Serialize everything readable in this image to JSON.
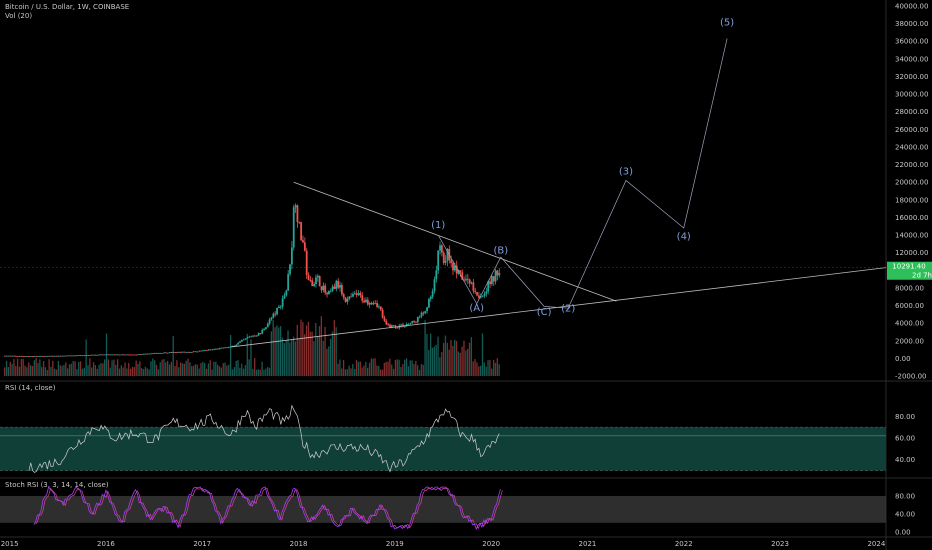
{
  "header": {
    "symbol": "Bitcoin / U.S. Dollar, 1W, COINBASE",
    "volume_label": "Vol (20)"
  },
  "rsi_panel": {
    "label": "RSI (14, close)"
  },
  "stoch_panel": {
    "label": "Stoch RSI (3, 3, 14, 14, close)"
  },
  "price_badge": {
    "price": "10291.40",
    "countdown": "2d 7h"
  },
  "colors": {
    "background": "#000000",
    "up": "#26a69a",
    "down": "#ef5350",
    "price_badge": "#2fbf5a",
    "rsi_line": "#d0d0d0",
    "rsi_band": "#0f3f36",
    "stoch_k": "#a040ff",
    "stoch_d": "#e0409c",
    "wave_label": "#7f9fd8",
    "grid_text": "#c8c8c8"
  },
  "chart_data": [
    {
      "type": "line",
      "name": "price",
      "y_ticks": [
        "40000.00",
        "38000.00",
        "36000.00",
        "34000.00",
        "32000.00",
        "30000.00",
        "28000.00",
        "26000.00",
        "24000.00",
        "22000.00",
        "20000.00",
        "18000.00",
        "16000.00",
        "14000.00",
        "12000.00",
        "10000.00",
        "8000.00",
        "6000.00",
        "4000.00",
        "2000.00",
        "0.00",
        "-2000.00"
      ],
      "ylim": [
        -2000,
        40000
      ],
      "x_ticks": [
        "2015",
        "2016",
        "2017",
        "2018",
        "2019",
        "2020",
        "2021",
        "2022",
        "2023",
        "2024"
      ],
      "xlim": [
        2014.9,
        2024.1
      ],
      "series": [
        {
          "values_x": [
            2014.95,
            2015.2,
            2015.5,
            2015.8,
            2016.0,
            2016.3,
            2016.6,
            2016.9,
            2017.1,
            2017.3,
            2017.5,
            2017.6,
            2017.7,
            2017.8,
            2017.88,
            2017.94,
            2017.96,
            2018.0,
            2018.05,
            2018.1,
            2018.2,
            2018.3,
            2018.4,
            2018.5,
            2018.6,
            2018.7,
            2018.8,
            2018.85,
            2018.9,
            2019.0,
            2019.1,
            2019.2,
            2019.3,
            2019.4,
            2019.47,
            2019.5,
            2019.55,
            2019.6,
            2019.7,
            2019.8,
            2019.85,
            2019.9,
            2020.0,
            2020.1
          ],
          "values_y": [
            300,
            250,
            280,
            380,
            430,
            420,
            650,
            750,
            1000,
            1300,
            2500,
            2800,
            4300,
            5800,
            8000,
            14000,
            19500,
            15000,
            13000,
            8500,
            9000,
            7000,
            8500,
            6500,
            7300,
            6500,
            6500,
            5500,
            3800,
            3600,
            3800,
            4100,
            5200,
            7500,
            13500,
            11000,
            12000,
            10500,
            9000,
            8500,
            7300,
            7200,
            8800,
            10291
          ]
        }
      ],
      "volume_bars": "weekly volume histogram along the bottom of the price panel",
      "wave_labels": [
        {
          "label": "(1)",
          "x": 2019.45,
          "y": 14800
        },
        {
          "label": "(A)",
          "x": 2019.85,
          "y": 5400
        },
        {
          "label": "(B)",
          "x": 2020.1,
          "y": 11900
        },
        {
          "label": "(C)",
          "x": 2020.55,
          "y": 4900
        },
        {
          "label": "(2)",
          "x": 2020.8,
          "y": 5300
        },
        {
          "label": "(3)",
          "x": 2021.4,
          "y": 20900
        },
        {
          "label": "(4)",
          "x": 2022.0,
          "y": 13500
        },
        {
          "label": "(5)",
          "x": 2022.45,
          "y": 37800
        }
      ],
      "trendlines": [
        {
          "from": [
            2017.95,
            20000
          ],
          "to": [
            2021.3,
            6500
          ]
        },
        {
          "from": [
            2017.3,
            1300
          ],
          "to": [
            2024.1,
            10300
          ]
        }
      ],
      "projection_path": [
        [
          2019.45,
          14000
        ],
        [
          2019.85,
          6200
        ],
        [
          2020.1,
          11500
        ],
        [
          2020.55,
          5900
        ],
        [
          2020.8,
          5700
        ],
        [
          2021.4,
          20200
        ],
        [
          2022.0,
          14800
        ],
        [
          2022.45,
          36300
        ]
      ]
    },
    {
      "type": "line",
      "name": "RSI (14, close)",
      "y_ticks": [
        "80.00",
        "60.00",
        "40.00"
      ],
      "ylim": [
        25,
        95
      ],
      "band": [
        30,
        70
      ],
      "level": 62,
      "values_x": [
        2015.2,
        2015.5,
        2015.7,
        2015.9,
        2016.1,
        2016.3,
        2016.5,
        2016.7,
        2016.9,
        2017.1,
        2017.3,
        2017.45,
        2017.55,
        2017.7,
        2017.85,
        2017.95,
        2018.05,
        2018.15,
        2018.3,
        2018.5,
        2018.7,
        2018.85,
        2018.95,
        2019.1,
        2019.3,
        2019.4,
        2019.5,
        2019.6,
        2019.7,
        2019.8,
        2019.9,
        2020.0,
        2020.1
      ],
      "values_y": [
        32,
        38,
        55,
        72,
        60,
        65,
        58,
        75,
        70,
        78,
        62,
        85,
        70,
        85,
        73,
        88,
        55,
        44,
        50,
        52,
        50,
        42,
        32,
        38,
        58,
        70,
        85,
        78,
        62,
        60,
        46,
        52,
        62
      ]
    },
    {
      "type": "line",
      "name": "Stoch RSI (3, 3, 14, 14, close)",
      "y_ticks": [
        "80.00",
        "40.00",
        "0.00"
      ],
      "ylim": [
        -5,
        100
      ],
      "band": [
        20,
        80
      ],
      "values_x": [
        2015.25,
        2015.4,
        2015.55,
        2015.7,
        2015.85,
        2016.0,
        2016.15,
        2016.3,
        2016.45,
        2016.6,
        2016.75,
        2016.9,
        2017.05,
        2017.2,
        2017.35,
        2017.5,
        2017.65,
        2017.8,
        2017.95,
        2018.1,
        2018.25,
        2018.4,
        2018.55,
        2018.7,
        2018.85,
        2019.0,
        2019.15,
        2019.3,
        2019.45,
        2019.55,
        2019.7,
        2019.85,
        2020.0,
        2020.1
      ],
      "values_y": [
        10,
        95,
        60,
        100,
        40,
        92,
        15,
        90,
        30,
        55,
        10,
        98,
        95,
        20,
        95,
        60,
        100,
        30,
        98,
        20,
        60,
        10,
        50,
        20,
        55,
        5,
        15,
        95,
        98,
        95,
        40,
        10,
        30,
        95
      ]
    }
  ]
}
